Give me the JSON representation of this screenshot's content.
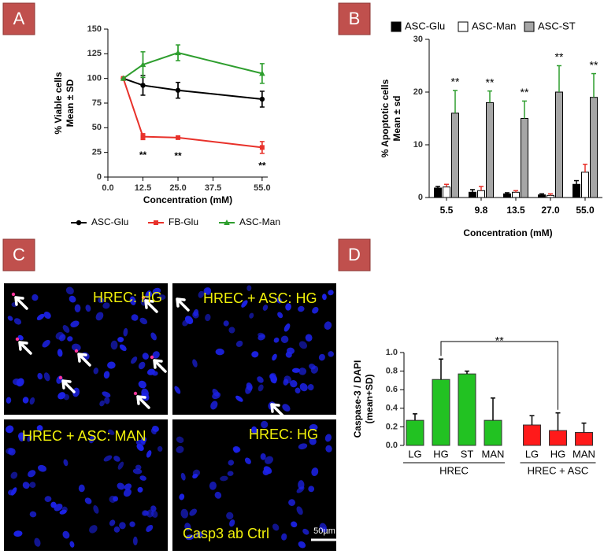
{
  "panel_labels": [
    "A",
    "B",
    "C",
    "D"
  ],
  "chart_data": [
    {
      "type": "line",
      "x": [
        5.5,
        12.5,
        25,
        55
      ],
      "xlabel": "Concentration (mM)",
      "ylabel": [
        "% Viable cells",
        "Mean ± SD"
      ],
      "xlim": [
        0,
        57
      ],
      "xticks": [
        {
          "value": 0,
          "label": "0.0"
        },
        12.5,
        {
          "value": 25,
          "label": "25.0"
        },
        37.5,
        {
          "value": 55,
          "label": "55.0"
        }
      ],
      "ylim": [
        0,
        150
      ],
      "yticks": [
        0,
        25,
        50,
        75,
        100,
        125,
        150
      ],
      "legend": "bottom",
      "series": [
        {
          "name": "ASC-Glu",
          "color": "#000000",
          "values": [
            100,
            93,
            88,
            79
          ],
          "errors": [
            null,
            10,
            8,
            8
          ]
        },
        {
          "name": "FB-Glu",
          "color": "#e8312a",
          "values": [
            100,
            41,
            40,
            30
          ],
          "errors": [
            null,
            3,
            1,
            6
          ],
          "annotations": [
            null,
            "**",
            "**",
            "**"
          ]
        },
        {
          "name": "ASC-Man",
          "color": "#2e9e2e",
          "values": [
            100,
            114,
            126,
            105
          ],
          "errors": [
            null,
            13,
            8,
            10
          ]
        }
      ]
    },
    {
      "type": "bar",
      "categories": [
        "5.5",
        "9.8",
        "13.5",
        "27.0",
        "55.0"
      ],
      "xlabel": "Concentration (mM)",
      "ylabel": [
        "% Apoptotic cells",
        "Mean ± sd"
      ],
      "ylim": [
        0,
        30
      ],
      "yticks": [
        0,
        10,
        20,
        30
      ],
      "legend": "top",
      "series": [
        {
          "name": "ASC-Glu",
          "color": "#000000",
          "error_color": "#000000",
          "values": [
            1.8,
            1.0,
            0.7,
            0.5,
            2.5
          ],
          "errors": [
            0.3,
            0.5,
            0.2,
            0.2,
            0.7
          ]
        },
        {
          "name": "ASC-Man",
          "color": "#ffffff",
          "error_color": "#e8312a",
          "values": [
            2.0,
            1.3,
            1.0,
            0.4,
            4.8
          ],
          "errors": [
            0.5,
            0.8,
            0.3,
            0.3,
            1.5
          ]
        },
        {
          "name": "ASC-ST",
          "color": "#a6a6a6",
          "error_color": "#2e9e2e",
          "values": [
            16,
            18,
            15,
            20,
            19
          ],
          "errors": [
            4.3,
            2.2,
            3.3,
            5,
            4.5
          ],
          "annotations": [
            "**",
            "**",
            "**",
            "**",
            "**"
          ]
        }
      ]
    },
    {
      "type": "bar",
      "ylabel": [
        "Caspase-3 / DAPI",
        "(mean+SD)"
      ],
      "ylim": [
        0,
        1
      ],
      "yticks": [
        {
          "value": 0,
          "label": "0.0"
        },
        {
          "value": 0.2,
          "label": "0.2"
        },
        {
          "value": 0.4,
          "label": "0.4"
        },
        {
          "value": 0.6,
          "label": "0.6"
        },
        {
          "value": 0.8,
          "label": "0.8"
        },
        {
          "value": 1,
          "label": "1.0"
        }
      ],
      "bracket_label": "**",
      "series": [
        {
          "name": "HREC",
          "color": "#22c222",
          "error_color": "#000000",
          "categories": [
            "LG",
            "HG",
            "ST",
            "MAN"
          ],
          "values": [
            0.27,
            0.71,
            0.77,
            0.27
          ],
          "errors": [
            0.07,
            0.22,
            0.03,
            0.24
          ]
        },
        {
          "name": "HREC + ASC",
          "color": "#ff1a1a",
          "error_color": "#000000",
          "categories": [
            "LG",
            "HG",
            "MAN"
          ],
          "values": [
            0.22,
            0.16,
            0.14
          ],
          "errors": [
            0.1,
            0.19,
            0.1
          ]
        }
      ]
    }
  ],
  "images": [
    {
      "labels": [
        "HREC: HG"
      ]
    },
    {
      "labels": [
        "HREC + ASC: HG"
      ]
    },
    {
      "labels": [
        "HREC + ASC: MAN"
      ]
    },
    {
      "labels": [
        "HREC: HG",
        "Casp3 ab Ctrl"
      ]
    }
  ],
  "scale_bar": "50µm"
}
